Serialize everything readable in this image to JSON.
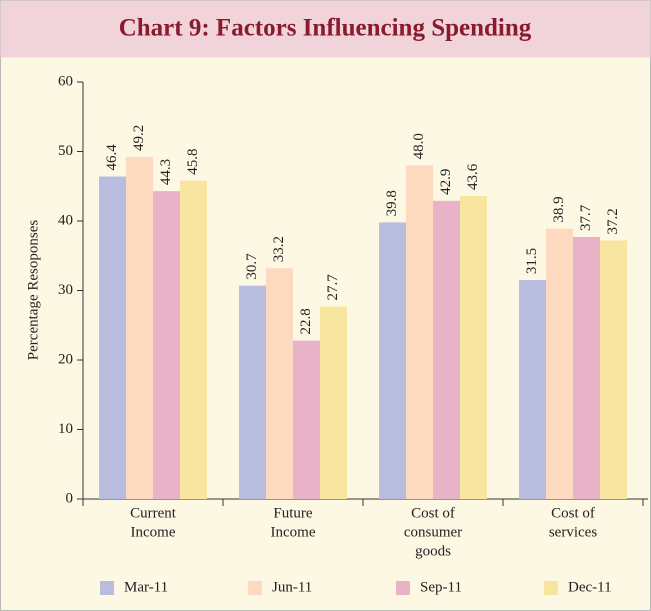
{
  "chart_data": {
    "type": "bar",
    "title": "Chart 9: Factors Influencing Spending",
    "y_label": "Percentage  Resoponses",
    "categories": [
      [
        "Current",
        "Income"
      ],
      [
        "Future",
        "Income"
      ],
      [
        "Cost of",
        "consumer",
        "goods"
      ],
      [
        "Cost of",
        "services"
      ]
    ],
    "series": [
      {
        "name": "Mar-11",
        "color": "#b8bde0",
        "values": [
          46.4,
          30.7,
          39.8,
          31.5
        ],
        "value_labels": [
          "46.4",
          "30.7",
          "39.8",
          "31.5"
        ]
      },
      {
        "name": "Jun-11",
        "color": "#fdd9bf",
        "values": [
          49.2,
          33.2,
          48.0,
          38.9
        ],
        "value_labels": [
          "49.2",
          "33.2",
          "48.0",
          "38.9"
        ]
      },
      {
        "name": "Sep-11",
        "color": "#e8b3c6",
        "values": [
          44.3,
          22.8,
          42.9,
          37.7
        ],
        "value_labels": [
          "44.3",
          "22.8",
          "42.9",
          "37.7"
        ]
      },
      {
        "name": "Dec-11",
        "color": "#f8e6a0",
        "values": [
          45.8,
          27.7,
          43.6,
          37.2
        ],
        "value_labels": [
          "45.8",
          "27.7",
          "43.6",
          "37.2"
        ]
      }
    ],
    "ylim": [
      0,
      60
    ],
    "yticks": [
      0,
      10,
      20,
      30,
      40,
      50,
      60
    ],
    "legend": "bottom"
  }
}
